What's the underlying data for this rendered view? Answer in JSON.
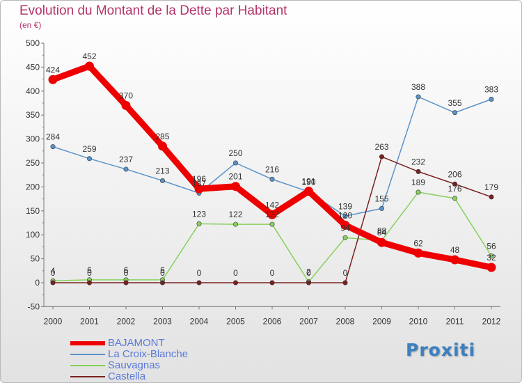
{
  "chart_data": {
    "type": "line",
    "title": "Evolution du Montant de la Dette par Habitant",
    "subtitle": "(en €)",
    "x_labels": [
      "2000",
      "2001",
      "2002",
      "2003",
      "2004",
      "2005",
      "2006",
      "2007",
      "2008",
      "2009",
      "2010",
      "2011",
      "2012"
    ],
    "y_ticks": [
      "500",
      "450",
      "400",
      "350",
      "300",
      "250",
      "200",
      "150",
      "100",
      "50",
      "0",
      "-50"
    ],
    "ylim": [
      -50,
      500
    ],
    "grid": false,
    "legend_position": "bottom-left",
    "series": [
      {
        "name": "La Croix-Blanche",
        "color": "#5b93c8",
        "values": [
          284,
          259,
          237,
          213,
          187,
          250,
          216,
          190,
          139,
          155,
          388,
          355,
          383
        ],
        "labels": [
          "284",
          "259",
          "237",
          "213",
          "187",
          "250",
          "216",
          "190",
          "139",
          "155",
          "388",
          "355",
          "383"
        ]
      },
      {
        "name": "Sauvagnas",
        "color": "#88d05c",
        "values": [
          4,
          6,
          6,
          6,
          123,
          122,
          122,
          2,
          94,
          88,
          189,
          176,
          56
        ],
        "labels": [
          "4",
          "6",
          "6",
          "6",
          "123",
          "122",
          "122",
          "2",
          "94",
          "88",
          "189",
          "176",
          "56"
        ]
      },
      {
        "name": "Castella",
        "color": "#7a2020",
        "values": [
          0,
          0,
          0,
          0,
          0,
          0,
          0,
          0,
          0,
          263,
          232,
          206,
          179
        ],
        "labels": [
          "0",
          "0",
          "0",
          "0",
          "0",
          "0",
          "0",
          "0",
          "0",
          "263",
          "232",
          "206",
          "179"
        ]
      },
      {
        "name": "BAJAMONT",
        "color": "#ee0000",
        "values": [
          424,
          452,
          370,
          285,
          196,
          201,
          142,
          191,
          120,
          84,
          62,
          48,
          32
        ],
        "labels": [
          "424",
          "452",
          "370",
          "285",
          "196",
          "201",
          "142",
          "191",
          "120",
          "84",
          "62",
          "48",
          "32"
        ]
      }
    ]
  },
  "legend": [
    {
      "name": "BAJAMONT",
      "color": "#ee0000",
      "thickness": 6
    },
    {
      "name": "La Croix-Blanche",
      "color": "#5b93c8",
      "thickness": 2
    },
    {
      "name": "Sauvagnas",
      "color": "#88d05c",
      "thickness": 2
    },
    {
      "name": "Castella",
      "color": "#7a2020",
      "thickness": 2
    }
  ],
  "brand": "Proxiti"
}
